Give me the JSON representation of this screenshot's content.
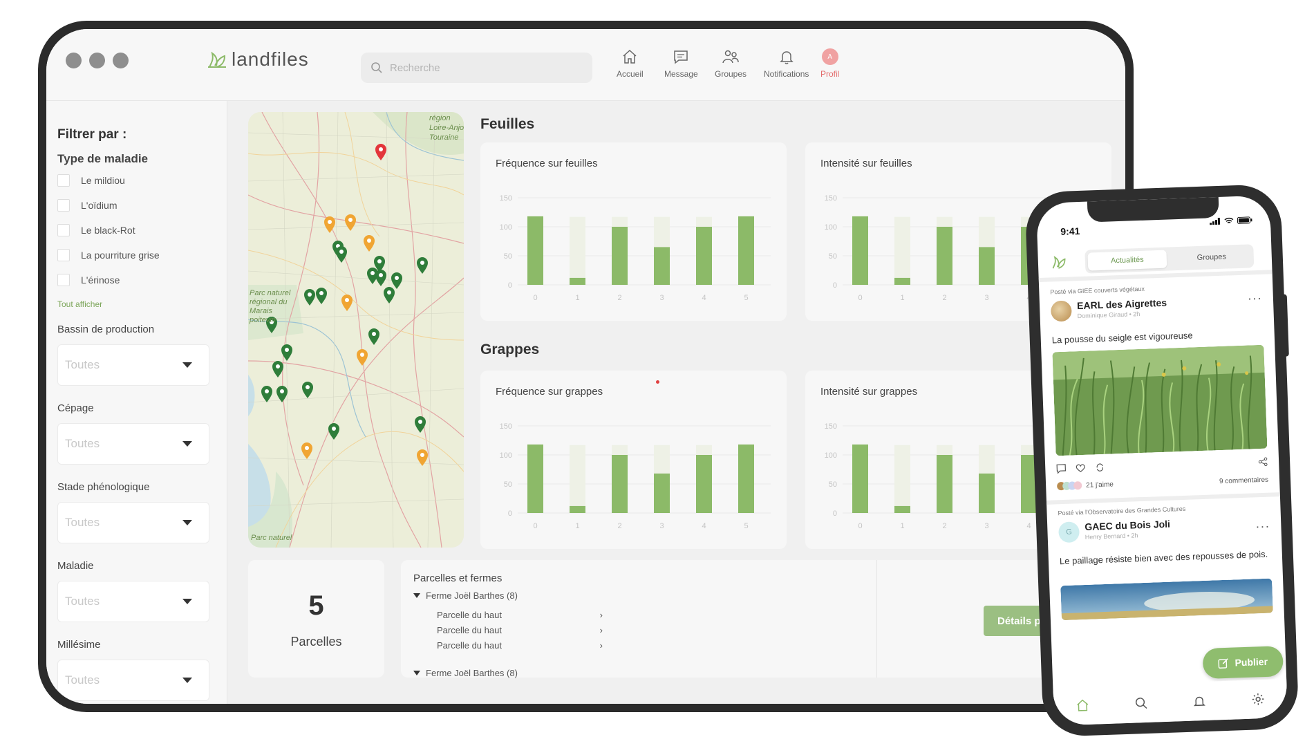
{
  "app": {
    "logo": "landfiles"
  },
  "search": {
    "placeholder": "Recherche"
  },
  "nav": [
    {
      "label": "Accueil",
      "icon": "home-icon"
    },
    {
      "label": "Message",
      "icon": "message-icon"
    },
    {
      "label": "Groupes",
      "icon": "group-icon"
    },
    {
      "label": "Notifications",
      "icon": "bell-icon"
    },
    {
      "label": "Profil",
      "icon": "avatar",
      "avatar_letter": "A"
    }
  ],
  "sidebar": {
    "title": "Filtrer par :",
    "disease_type_title": "Type de maladie",
    "diseases": [
      "Le mildiou",
      "L'oïdium",
      "Le black-Rot",
      "La pourriture grise",
      "L'érinose"
    ],
    "show_all": "Tout afficher",
    "filters": [
      {
        "label": "Bassin de production",
        "value": "Toutes"
      },
      {
        "label": "Cépage",
        "value": "Toutes"
      },
      {
        "label": "Stade phénologique",
        "value": "Toutes"
      },
      {
        "label": "Maladie",
        "value": "Toutes"
      },
      {
        "label": "Millésime",
        "value": "Toutes"
      }
    ]
  },
  "map": {
    "labels": [
      "région Loire-Anjou-Touraine",
      "Parc naturel régional du Marais poitevin",
      "Parc naturel"
    ]
  },
  "sections": {
    "leaves": "Feuilles",
    "grapes": "Grappes"
  },
  "chart_data": [
    {
      "type": "bar",
      "title": "Fréquence sur feuilles",
      "categories": [
        "0",
        "1",
        "2",
        "3",
        "4",
        "5"
      ],
      "values": [
        118,
        12,
        100,
        65,
        100,
        118
      ],
      "ylim": [
        0,
        150
      ],
      "yticks": [
        0,
        50,
        100,
        150
      ]
    },
    {
      "type": "bar",
      "title": "Intensité sur feuilles",
      "categories": [
        "0",
        "1",
        "2",
        "3",
        "4"
      ],
      "values": [
        118,
        12,
        100,
        65,
        100
      ],
      "ylim": [
        0,
        150
      ],
      "yticks": [
        0,
        50,
        100,
        150
      ]
    },
    {
      "type": "bar",
      "title": "Fréquence sur grappes",
      "categories": [
        "0",
        "1",
        "2",
        "3",
        "4",
        "5"
      ],
      "values": [
        118,
        12,
        100,
        68,
        100,
        118
      ],
      "ylim": [
        0,
        150
      ],
      "yticks": [
        0,
        50,
        100,
        150
      ]
    },
    {
      "type": "bar",
      "title": "Intensité sur grappes",
      "categories": [
        "0",
        "1",
        "2",
        "3",
        "4"
      ],
      "values": [
        118,
        12,
        100,
        68,
        100
      ],
      "ylim": [
        0,
        150
      ],
      "yticks": [
        0,
        50,
        100,
        150
      ]
    }
  ],
  "summary": {
    "count": "5",
    "count_label": "Parcelles"
  },
  "parcels": {
    "title": "Parcelles et fermes",
    "farm1": "Ferme Joël Barthes (8)",
    "items": [
      "Parcelle du haut",
      "Parcelle du haut",
      "Parcelle du haut"
    ],
    "farm2": "Ferme Joël Barthes (8)",
    "details_button": "Détails parcelles"
  },
  "phone": {
    "time": "9:41",
    "tabs": [
      "Actualités",
      "Groupes"
    ],
    "posts": [
      {
        "via": "Posté via GIEE couverts végétaux",
        "author": "EARL des Aigrettes",
        "meta": "Dominique Giraud  •  2h",
        "text": "La pousse du seigle est vigoureuse",
        "likes": "21 j'aime",
        "comments": "9 commentaires"
      },
      {
        "via": "Posté via l'Observatoire des Grandes Cultures",
        "author": "GAEC du Bois Joli",
        "avatar_letter": "G",
        "meta": "Henry Bernard  •  2h",
        "text": "Le paillage résiste bien avec des repousses de pois."
      }
    ],
    "publish": "Publier"
  },
  "colors": {
    "accent": "#8fbd6e",
    "bar": "#8cba68",
    "bar_bg": "#eef1e6",
    "pin_green": "#2f7d3a",
    "pin_orange": "#f0a533",
    "pin_red": "#e3353b"
  }
}
